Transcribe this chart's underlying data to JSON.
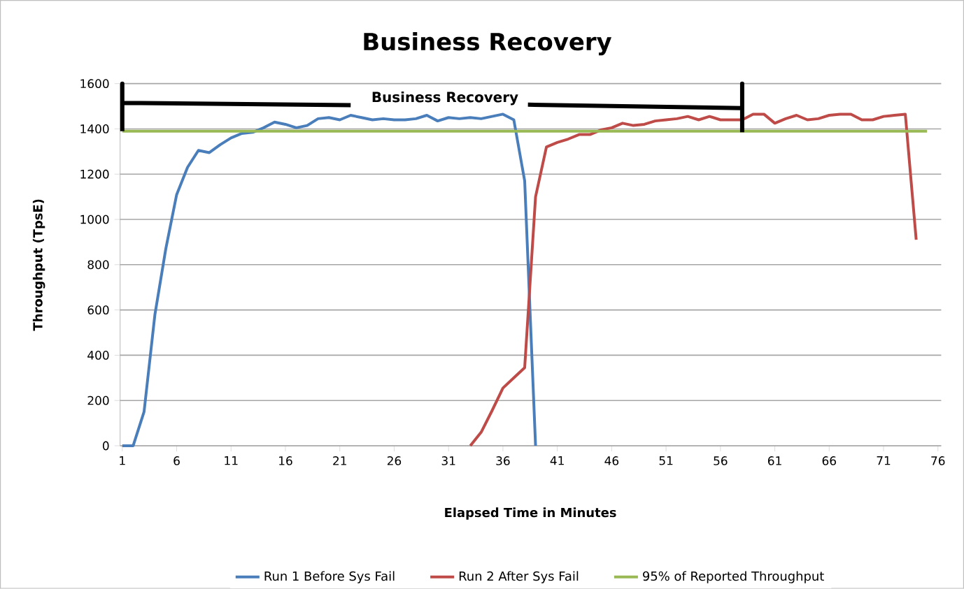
{
  "chart_data": {
    "type": "line",
    "title": "Business Recovery",
    "subtitle": "Business Recovery",
    "xlabel": "Elapsed Time in Minutes",
    "ylabel": "Throughput (TpsE)",
    "xlim": [
      0.8,
      76.3
    ],
    "xticks": [
      1,
      6,
      11,
      16,
      21,
      26,
      31,
      36,
      41,
      46,
      51,
      56,
      61,
      66,
      71,
      76
    ],
    "ylim": [
      0,
      1600
    ],
    "yticks": [
      0,
      200,
      400,
      600,
      800,
      1000,
      1200,
      1400,
      1600
    ],
    "grid": "y",
    "legend": "bottom",
    "series": [
      {
        "name": "Run 1 Before Sys Fail",
        "color": "#4a7ebb",
        "x": [
          1,
          2,
          3,
          4,
          5,
          6,
          7,
          8,
          9,
          10,
          11,
          12,
          13,
          14,
          15,
          16,
          17,
          18,
          19,
          20,
          21,
          22,
          23,
          24,
          25,
          26,
          27,
          28,
          29,
          30,
          31,
          32,
          33,
          34,
          35,
          36,
          37,
          38,
          39
        ],
        "values": [
          0,
          0,
          150,
          580,
          870,
          1110,
          1230,
          1305,
          1295,
          1330,
          1360,
          1380,
          1385,
          1405,
          1430,
          1420,
          1405,
          1415,
          1445,
          1450,
          1440,
          1460,
          1450,
          1440,
          1445,
          1440,
          1440,
          1445,
          1460,
          1435,
          1450,
          1445,
          1450,
          1445,
          1455,
          1465,
          1440,
          1170,
          0
        ]
      },
      {
        "name": "Run 2 After Sys Fail",
        "color": "#be4b48",
        "x": [
          33,
          34,
          35,
          36,
          37,
          38,
          39,
          40,
          41,
          42,
          43,
          44,
          45,
          46,
          47,
          48,
          49,
          50,
          51,
          52,
          53,
          54,
          55,
          56,
          57,
          58,
          59,
          60,
          61,
          62,
          63,
          64,
          65,
          66,
          67,
          68,
          69,
          70,
          71,
          72,
          73,
          74
        ],
        "values": [
          0,
          60,
          155,
          255,
          300,
          345,
          1100,
          1320,
          1340,
          1355,
          1375,
          1375,
          1395,
          1405,
          1425,
          1415,
          1420,
          1435,
          1440,
          1445,
          1455,
          1440,
          1455,
          1440,
          1440,
          1440,
          1465,
          1465,
          1425,
          1445,
          1460,
          1440,
          1445,
          1460,
          1465,
          1465,
          1440,
          1440,
          1455,
          1460,
          1465,
          910
        ]
      },
      {
        "name": "95% of Reported Throughput",
        "color": "#98b954",
        "x": [
          1,
          75
        ],
        "values": [
          1390,
          1390
        ]
      },
      {
        "color": "#000000",
        "x": [
          22,
          1,
          1,
          1
        ],
        "values": [
          1505,
          1515,
          1600,
          1390
        ]
      },
      {
        "color": "#000000",
        "x": [
          38.3,
          58,
          58,
          58
        ],
        "values": [
          1507,
          1492,
          1600,
          1385
        ]
      }
    ]
  }
}
